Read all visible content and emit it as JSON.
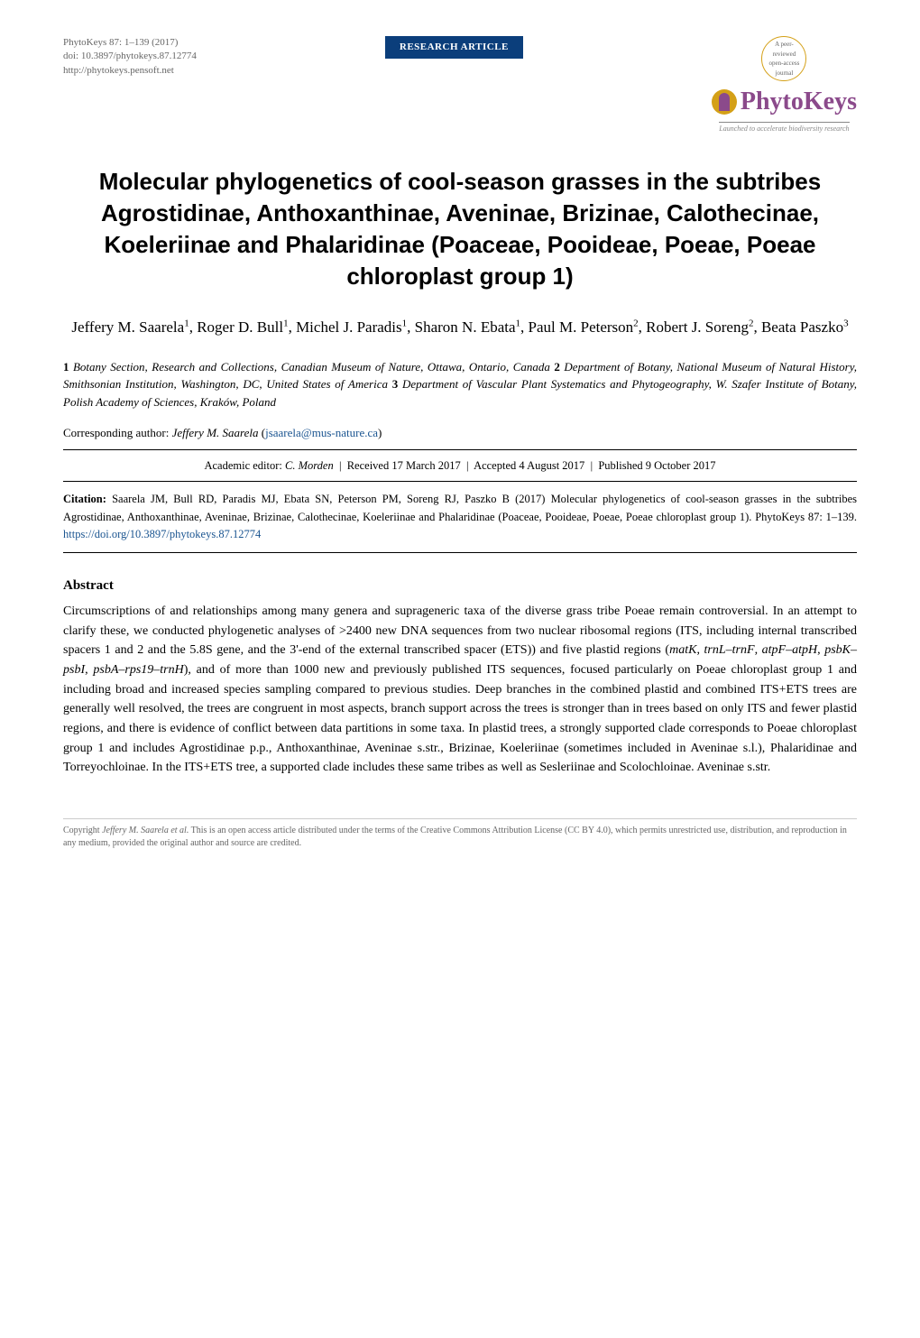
{
  "pub_info": {
    "journal_ref": "PhytoKeys 87: 1–139 (2017)",
    "doi": "doi: 10.3897/phytokeys.87.12774",
    "url": "http://phytokeys.pensoft.net"
  },
  "badge": {
    "label": "RESEARCH ARTICLE",
    "bg_color": "#0b3e7b",
    "text_color": "#ffffff"
  },
  "logo": {
    "name": "PhytoKeys",
    "badge_text": "A peer-reviewed open-access journal",
    "tagline": "Launched to accelerate biodiversity research",
    "color": "#8b4a8b",
    "icon_bg": "#d4a017"
  },
  "title": "Molecular phylogenetics of cool-season grasses in the subtribes Agrostidinae, Anthoxanthinae, Aveninae, Brizinae, Calothecinae, Koeleriinae and Phalaridinae (Poaceae, Pooideae, Poeae, Poeae chloroplast group 1)",
  "authors_html": "Jeffery M. Saarela<sup>1</sup>, Roger D. Bull<sup>1</sup>, Michel J. Paradis<sup>1</sup>, Sharon N. Ebata<sup>1</sup>, Paul M. Peterson<sup>2</sup>, Robert J. Soreng<sup>2</sup>, Beata Paszko<sup>3</sup>",
  "affiliations_html": "<span class=\"num\">1</span> <em>Botany Section, Research and Collections, Canadian Museum of Nature, Ottawa, Ontario, Canada</em> <span class=\"num\">2</span> <em>Department of Botany, National Museum of Natural History, Smithsonian Institution, Washington, DC, United States of America</em> <span class=\"num\">3</span> <em>Department of Vascular Plant Systematics and Phytogeography, W. Szafer Institute of Botany, Polish Academy of Sciences, Kraków, Poland</em>",
  "corresponding": {
    "label": "Corresponding author:",
    "name": "Jeffery M. Saarela",
    "email": "jsaarela@mus-nature.ca"
  },
  "editor_line": {
    "editor_label": "Academic editor:",
    "editor": "C. Morden",
    "received": "Received 17 March 2017",
    "accepted": "Accepted 4 August 2017",
    "published": "Published 9 October 2017"
  },
  "citation": {
    "label": "Citation:",
    "text": "Saarela JM, Bull RD, Paradis MJ, Ebata SN, Peterson PM, Soreng RJ, Paszko B (2017) Molecular phylogenetics of cool-season grasses in the subtribes Agrostidinae, Anthoxanthinae, Aveninae, Brizinae, Calothecinae, Koeleriinae and Phalaridinae (Poaceae, Pooideae, Poeae, Poeae chloroplast group 1). PhytoKeys 87: 1–139.",
    "link": "https://doi.org/10.3897/phytokeys.87.12774"
  },
  "abstract": {
    "heading": "Abstract",
    "text_html": "Circumscriptions of and relationships among many genera and suprageneric taxa of the diverse grass tribe Poeae remain controversial. In an attempt to clarify these, we conducted phylogenetic analyses of &gt;2400 new DNA sequences from two nuclear ribosomal regions (ITS, including internal transcribed spacers 1 and 2 and the 5.8S gene, and the 3'-end of the external transcribed spacer (ETS)) and five plastid regions (<em>matK</em>, <em>trnL–trnF</em>, <em>atpF–atpH</em>, <em>psbK–psbI</em>, <em>psbA–rps19–trnH</em>), and of more than 1000 new and previously published ITS sequences, focused particularly on Poeae chloroplast group 1 and including broad and increased species sampling compared to previous studies. Deep branches in the combined plastid and combined ITS+ETS trees are generally well resolved, the trees are congruent in most aspects, branch support across the trees is stronger than in trees based on only ITS and fewer plastid regions, and there is evidence of conflict between data partitions in some taxa. In plastid trees, a strongly supported clade corresponds to Poeae chloroplast group 1 and includes Agrostidinae p.p., Anthoxanthinae, Aveninae s.str., Brizinae, Koeleriinae (sometimes included in Aveninae s.l.), Phalaridinae and Torreyochloinae. In the ITS+ETS tree, a supported clade includes these same tribes as well as Sesleriinae and Scolochloinae. Aveninae s.str."
  },
  "footer": {
    "copyright_label": "Copyright",
    "copyright_name": "Jeffery M. Saarela et al.",
    "license_text": "This is an open access article distributed under the terms of the Creative Commons Attribution License (CC BY 4.0), which permits unrestricted use, distribution, and reproduction in any medium, provided the original author and source are credited."
  },
  "colors": {
    "link": "#1a5490",
    "text": "#000000",
    "muted": "#666666"
  },
  "typography": {
    "title_fontsize": 26,
    "body_fontsize": 14,
    "authors_fontsize": 17,
    "footer_fontsize": 10
  }
}
